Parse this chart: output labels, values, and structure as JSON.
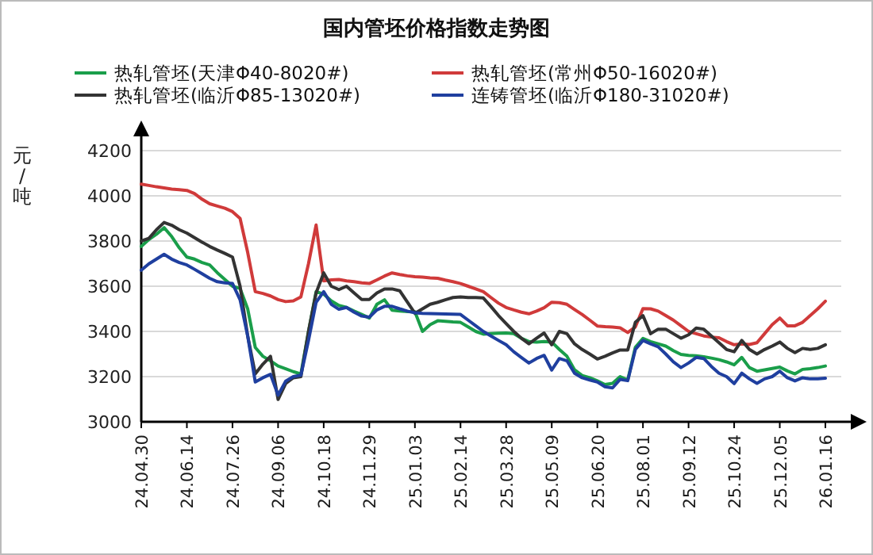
{
  "chart_data": {
    "type": "line",
    "title": "国内管坯价格指数走势图",
    "ylabel": "元/吨",
    "categories": [
      "24.04.30",
      null,
      null,
      null,
      null,
      null,
      "24.06.14",
      null,
      null,
      null,
      null,
      null,
      "24.07.26",
      null,
      null,
      null,
      null,
      null,
      "24.09.06",
      null,
      null,
      null,
      null,
      null,
      "24.10.18",
      null,
      null,
      null,
      null,
      null,
      "24.11.29",
      null,
      null,
      null,
      null,
      null,
      "25.01.03",
      null,
      null,
      null,
      null,
      null,
      "25.02.14",
      null,
      null,
      null,
      null,
      null,
      "25.03.28",
      null,
      null,
      null,
      null,
      null,
      "25.05.09",
      null,
      null,
      null,
      null,
      null,
      "25.06.20",
      null,
      null,
      null,
      null,
      null,
      "25.08.01",
      null,
      null,
      null,
      null,
      null,
      "25.09.12",
      null,
      null,
      null,
      null,
      null,
      "25.10.24",
      null,
      null,
      null,
      null,
      null,
      "25.12.05",
      null,
      null,
      null,
      null,
      null,
      "26.01.16"
    ],
    "series": [
      {
        "name": "热轧管坯(天津Φ40-8020#)",
        "color": "#1a9e4a",
        "values": [
          3776,
          3807,
          3830,
          3859,
          3820,
          3770,
          3729,
          3720,
          3705,
          3694,
          3660,
          3630,
          3600,
          3590,
          3500,
          3329,
          3290,
          3270,
          3247,
          3235,
          3222,
          3212,
          3400,
          3576,
          3565,
          3535,
          3515,
          3506,
          3490,
          3475,
          3459,
          3520,
          3540,
          3494,
          3490,
          3488,
          3487,
          3400,
          3430,
          3447,
          3445,
          3442,
          3440,
          3420,
          3400,
          3388,
          3390,
          3392,
          3393,
          3390,
          3370,
          3355,
          3353,
          3355,
          3353,
          3320,
          3290,
          3230,
          3205,
          3195,
          3181,
          3165,
          3170,
          3200,
          3185,
          3330,
          3369,
          3355,
          3345,
          3335,
          3315,
          3298,
          3294,
          3292,
          3288,
          3282,
          3275,
          3265,
          3252,
          3285,
          3240,
          3224,
          3230,
          3236,
          3242,
          3225,
          3212,
          3232,
          3235,
          3240,
          3247
        ]
      },
      {
        "name": "热轧管坯(常州Φ50-16020#)",
        "color": "#d03a3a",
        "values": [
          4052,
          4046,
          4040,
          4035,
          4030,
          4027,
          4024,
          4010,
          3985,
          3965,
          3955,
          3945,
          3930,
          3900,
          3750,
          3576,
          3568,
          3557,
          3541,
          3532,
          3535,
          3553,
          3700,
          3871,
          3624,
          3628,
          3630,
          3624,
          3620,
          3615,
          3612,
          3628,
          3645,
          3659,
          3652,
          3646,
          3642,
          3640,
          3637,
          3635,
          3627,
          3620,
          3612,
          3600,
          3588,
          3576,
          3550,
          3525,
          3506,
          3495,
          3485,
          3478,
          3490,
          3505,
          3529,
          3527,
          3520,
          3497,
          3475,
          3450,
          3424,
          3421,
          3419,
          3416,
          3395,
          3420,
          3501,
          3500,
          3490,
          3470,
          3450,
          3425,
          3400,
          3390,
          3380,
          3375,
          3372,
          3355,
          3341,
          3345,
          3342,
          3350,
          3390,
          3430,
          3459,
          3425,
          3425,
          3440,
          3470,
          3500,
          3534
        ]
      },
      {
        "name": "热轧管坯(临沂Φ85-13020#)",
        "color": "#333333",
        "values": [
          3800,
          3812,
          3850,
          3882,
          3870,
          3850,
          3835,
          3815,
          3795,
          3776,
          3760,
          3745,
          3729,
          3600,
          3380,
          3212,
          3255,
          3290,
          3099,
          3170,
          3195,
          3200,
          3400,
          3570,
          3659,
          3600,
          3585,
          3600,
          3570,
          3541,
          3541,
          3570,
          3588,
          3588,
          3580,
          3530,
          3480,
          3500,
          3520,
          3529,
          3540,
          3550,
          3553,
          3550,
          3550,
          3548,
          3510,
          3470,
          3435,
          3400,
          3370,
          3345,
          3370,
          3393,
          3341,
          3400,
          3390,
          3345,
          3320,
          3300,
          3278,
          3290,
          3305,
          3318,
          3318,
          3440,
          3470,
          3390,
          3410,
          3410,
          3390,
          3370,
          3385,
          3415,
          3410,
          3380,
          3350,
          3320,
          3310,
          3360,
          3320,
          3300,
          3320,
          3335,
          3353,
          3325,
          3306,
          3325,
          3320,
          3325,
          3341
        ]
      },
      {
        "name": "连铸管坯(临沂Φ180-31020#)",
        "color": "#1f3f9f",
        "values": [
          3671,
          3699,
          3720,
          3741,
          3720,
          3705,
          3694,
          3675,
          3655,
          3635,
          3620,
          3615,
          3612,
          3540,
          3380,
          3176,
          3195,
          3210,
          3118,
          3180,
          3200,
          3206,
          3360,
          3529,
          3576,
          3520,
          3498,
          3506,
          3485,
          3468,
          3463,
          3495,
          3511,
          3511,
          3500,
          3490,
          3482,
          3480,
          3479,
          3478,
          3477,
          3476,
          3475,
          3450,
          3425,
          3400,
          3380,
          3360,
          3341,
          3310,
          3285,
          3260,
          3280,
          3294,
          3229,
          3280,
          3270,
          3215,
          3195,
          3185,
          3176,
          3155,
          3150,
          3188,
          3182,
          3320,
          3360,
          3345,
          3332,
          3300,
          3265,
          3240,
          3260,
          3285,
          3280,
          3245,
          3215,
          3200,
          3169,
          3215,
          3190,
          3170,
          3190,
          3200,
          3224,
          3195,
          3181,
          3195,
          3190,
          3190,
          3193
        ]
      }
    ],
    "ylim": [
      3000,
      4200
    ],
    "yticks": [
      3000,
      3200,
      3400,
      3600,
      3800,
      4000,
      4200
    ],
    "grid": "y",
    "legend": "top"
  }
}
